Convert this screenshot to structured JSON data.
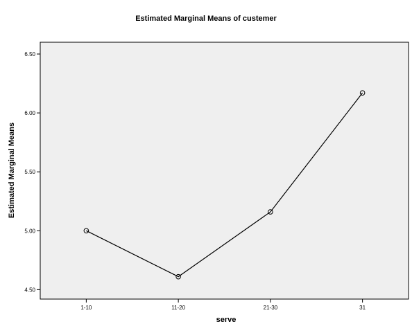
{
  "chart_data": {
    "type": "line",
    "title": "Estimated Marginal Means of custemer",
    "xlabel": "serve",
    "ylabel": "Estimated Marginal Means",
    "categories": [
      "1-10",
      "11-20",
      "21-30",
      "31"
    ],
    "values": [
      5.0,
      4.61,
      5.16,
      6.17
    ],
    "ylim": [
      4.42,
      6.6
    ],
    "yticks": [
      "4.50",
      "5.00",
      "5.50",
      "6.00",
      "6.50"
    ],
    "ytick_values": [
      4.5,
      5.0,
      5.5,
      6.0,
      6.5
    ],
    "grid": false,
    "marker": "open-circle",
    "colors": {
      "plot_background": "#efefef",
      "line": "#000000",
      "frame": "#000000"
    }
  }
}
